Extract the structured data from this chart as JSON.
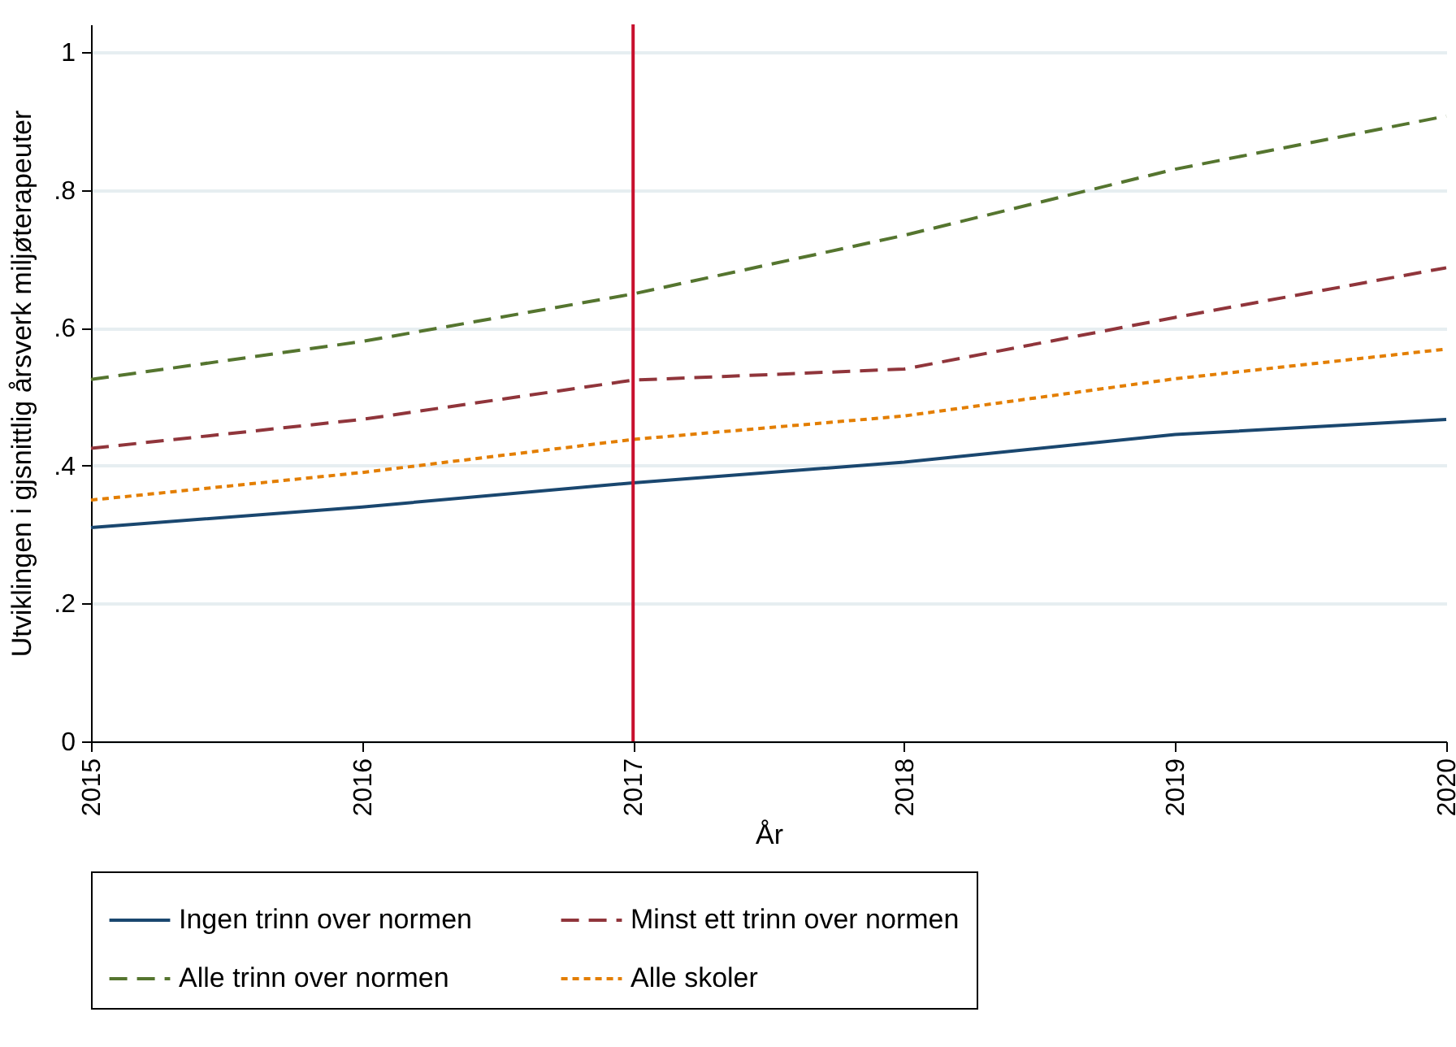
{
  "chart_data": {
    "type": "line",
    "xlabel": "År",
    "ylabel": "Utviklingen i gjsnittlig årsverk miljøterapeuter",
    "x": [
      2015,
      2016,
      2017,
      2018,
      2019,
      2020
    ],
    "series": [
      {
        "name": "Ingen trinn over normen",
        "color": "#1a476f",
        "line_style": "solid",
        "values": [
          0.31,
          0.34,
          0.375,
          0.405,
          0.445,
          0.467
        ]
      },
      {
        "name": "Minst ett trinn over normen",
        "color": "#90353b",
        "line_style": "dashed",
        "values": [
          0.425,
          0.467,
          0.524,
          0.54,
          0.615,
          0.687
        ]
      },
      {
        "name": "Alle trinn over normen",
        "color": "#55752f",
        "line_style": "dashed",
        "values": [
          0.525,
          0.58,
          0.649,
          0.734,
          0.83,
          0.907
        ]
      },
      {
        "name": "Alle skoler",
        "color": "#e37e00",
        "line_style": "dotted",
        "values": [
          0.35,
          0.39,
          0.438,
          0.472,
          0.526,
          0.569
        ]
      }
    ],
    "xlim": [
      2015,
      2020
    ],
    "xticks": [
      2015,
      2016,
      2017,
      2018,
      2019,
      2020
    ],
    "ylim": [
      0,
      1.04
    ],
    "yticks": [
      0,
      {
        "value": 0.2,
        "label": ".2"
      },
      {
        "value": 0.4,
        "label": ".4"
      },
      {
        "value": 0.6,
        "label": ".6"
      },
      {
        "value": 0.8,
        "label": ".8"
      },
      1
    ],
    "ref_lines": [
      {
        "axis": "x",
        "value": 2017,
        "color": "#c8102e"
      }
    ],
    "grid": "y",
    "legend": "bottom",
    "marker": "none"
  }
}
